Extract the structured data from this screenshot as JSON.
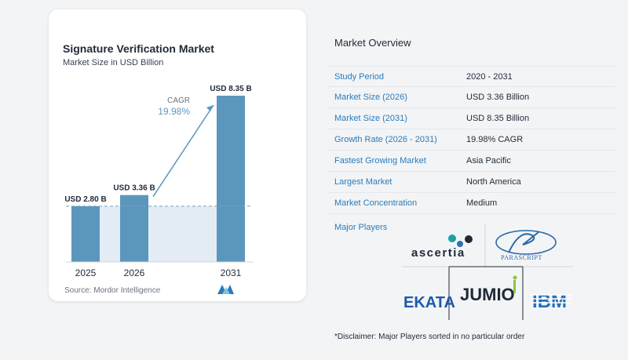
{
  "chart": {
    "title": "Signature Verification Market",
    "subtitle": "Market Size in USD Billion",
    "source": "Source:  Mordor Intelligence",
    "cagr_label": "CAGR",
    "cagr_value": "19.98%"
  },
  "chart_data": {
    "type": "bar",
    "categories": [
      "2025",
      "2026",
      "2031"
    ],
    "values": [
      2.8,
      3.36,
      8.35
    ],
    "data_labels": [
      "USD 2.80 B",
      "USD 3.36 B",
      "USD 8.35 B"
    ],
    "title": "Signature Verification Market",
    "subtitle": "Market Size in USD Billion",
    "xlabel": "",
    "ylabel": "",
    "ylim": [
      0,
      8.35
    ],
    "annotation": "CAGR 19.98%",
    "bar_color": "#5b97bd"
  },
  "overview": {
    "title": "Market Overview",
    "rows": [
      {
        "label": "Study Period",
        "value": "2020 - 2031"
      },
      {
        "label": "Market Size (2026)",
        "value": "USD 3.36 Billion"
      },
      {
        "label": "Market Size (2031)",
        "value": "USD 8.35 Billion"
      },
      {
        "label": "Growth Rate (2026 - 2031)",
        "value": "19.98% CAGR"
      },
      {
        "label": "Fastest Growing Market",
        "value": "Asia Pacific"
      },
      {
        "label": "Largest Market",
        "value": "North America"
      },
      {
        "label": "Market Concentration",
        "value": "Medium"
      }
    ],
    "players_title": "Major Players",
    "players": [
      "ascertia",
      "PARASCRIPT",
      "EKATA",
      "JUMIO",
      "IBM"
    ],
    "disclaimer": "*Disclaimer: Major Players sorted in no particular order"
  },
  "colors": {
    "bar": "#5b97bd",
    "label_blue": "#2b7bb9",
    "jumio_green": "#8dc63f",
    "ibm_blue": "#1f70c1"
  }
}
